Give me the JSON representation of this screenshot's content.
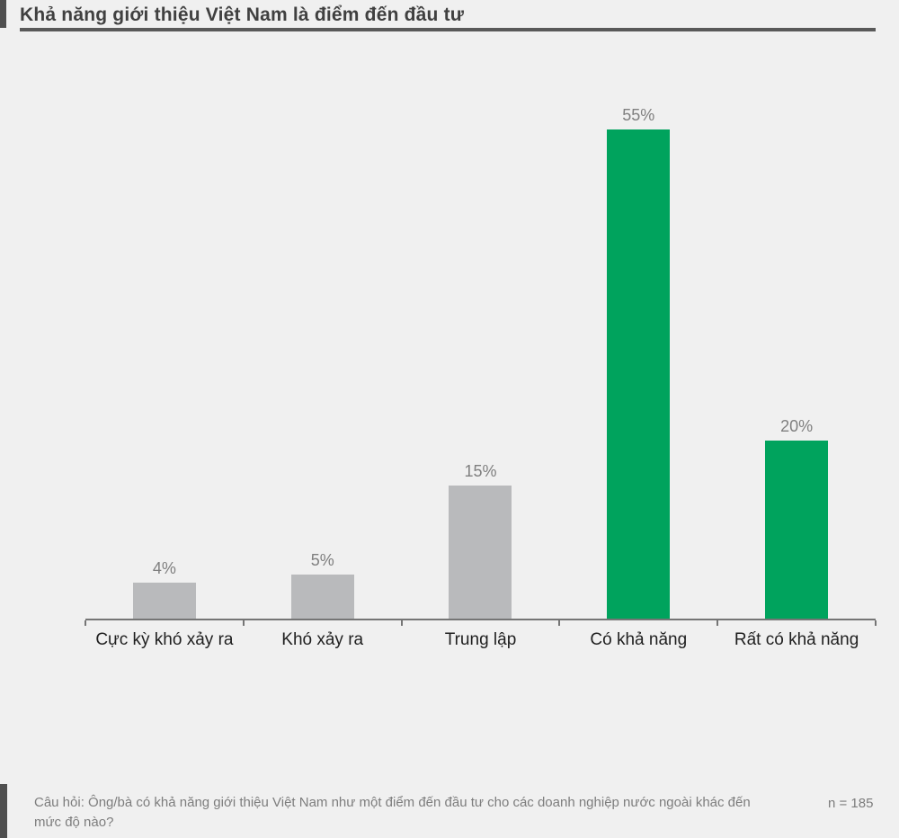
{
  "page": {
    "title": "Khả năng giới thiệu Việt Nam là điểm đến đầu tư",
    "background_color": "#f0f0f0",
    "title_color": "#404040",
    "underline_color": "#595959"
  },
  "chart_data": {
    "type": "bar",
    "title": "Khả năng giới thiệu Việt Nam là điểm đến đầu tư",
    "categories": [
      "Cực kỳ khó xảy ra",
      "Khó xảy ra",
      "Trung lập",
      "Có khả năng",
      "Rất có khả năng"
    ],
    "values": [
      4,
      5,
      15,
      55,
      20
    ],
    "value_labels": [
      "4%",
      "5%",
      "15%",
      "55%",
      "20%"
    ],
    "bar_colors": [
      "#b9babc",
      "#b9babc",
      "#b9babc",
      "#00a35d",
      "#00a35d"
    ],
    "unit": "%",
    "xlabel": "",
    "ylabel": "",
    "ylim": [
      0,
      60
    ],
    "grid": false,
    "legend": false,
    "axis_color": "#757575",
    "value_label_color": "#7f7f7f",
    "category_label_color": "#1f1f1f"
  },
  "footer": {
    "question": "Câu hỏi: Ông/bà có khả năng giới thiệu Việt Nam như một điểm đến đầu tư cho các doanh nghiệp nước ngoài khác đến mức độ nào?",
    "sample_size": "n = 185"
  }
}
